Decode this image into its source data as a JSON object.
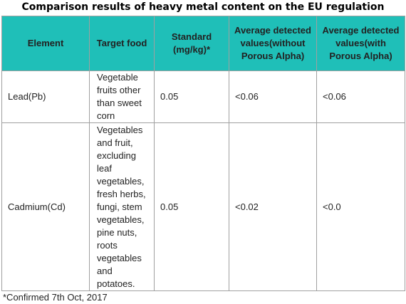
{
  "title": "Comparison results of heavy metal content on the EU regulation",
  "table": {
    "header": [
      "Element",
      "Target food",
      "Standard (mg/kg)*",
      "Average detected values(without Porous Alpha)",
      "Average detected values(with Porous Alpha)"
    ],
    "rows": [
      [
        "Lead(Pb)",
        "Vegetable fruits other than sweet corn",
        "0.05",
        "<0.06",
        "<0.06"
      ],
      [
        "Cadmium(Cd)",
        "Vegetables and fruit, excluding leaf vegetables, fresh herbs, fungi, stem vegetables, pine nuts, roots vegetables and potatoes.",
        "0.05",
        "<0.02",
        "<0.0"
      ]
    ]
  },
  "footnote": "*Confirmed 7th Oct, 2017"
}
